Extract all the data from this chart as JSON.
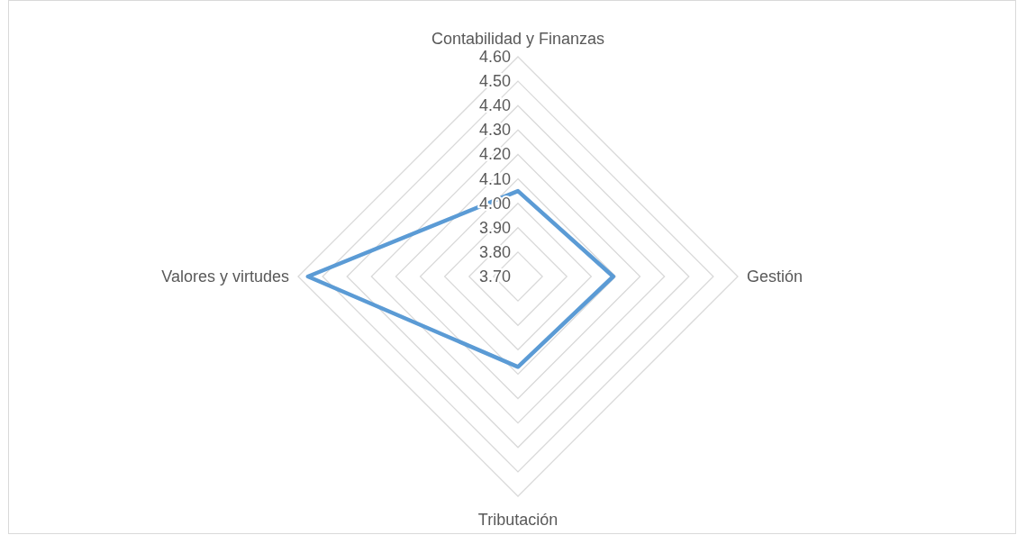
{
  "chart_data": {
    "type": "radar",
    "categories": [
      "Contabilidad y Finanzas",
      "Gestión",
      "Tributación",
      "Valores y virtudes"
    ],
    "series": [
      {
        "color": "#5b9bd5",
        "values": [
          4.05,
          4.09,
          4.07,
          4.56
        ]
      }
    ],
    "ylim": [
      3.7,
      4.6
    ],
    "yticks": [
      {
        "value": 3.7,
        "label": "3.70"
      },
      {
        "value": 3.8,
        "label": "3.80"
      },
      {
        "value": 3.9,
        "label": "3.90"
      },
      {
        "value": 4.0,
        "label": "4.00"
      },
      {
        "value": 4.1,
        "label": "4.10"
      },
      {
        "value": 4.2,
        "label": "4.20"
      },
      {
        "value": 4.3,
        "label": "4.30"
      },
      {
        "value": 4.4,
        "label": "4.40"
      },
      {
        "value": 4.5,
        "label": "4.50"
      },
      {
        "value": 4.6,
        "label": "4.60"
      }
    ],
    "grid": true,
    "marker": "none",
    "line_style": "solid"
  }
}
